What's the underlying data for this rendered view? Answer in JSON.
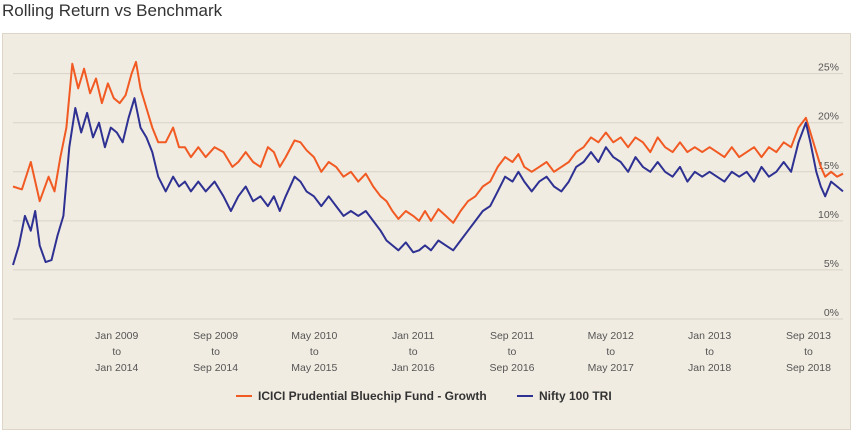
{
  "header": {
    "title": "Rolling Return vs Benchmark"
  },
  "chart_data": {
    "type": "line",
    "title": "Rolling Return vs Benchmark",
    "y_ticks": [
      "0%",
      "5%",
      "10%",
      "15%",
      "20%",
      "25%"
    ],
    "ylim": [
      0,
      27
    ],
    "grid": true,
    "legend": "bottom",
    "x_ticks": [
      [
        "Jan 2009",
        "to",
        "Jan 2014"
      ],
      [
        "Sep 2009",
        "to",
        "Sep 2014"
      ],
      [
        "May 2010",
        "to",
        "May 2015"
      ],
      [
        "Jan 2011",
        "to",
        "Jan 2016"
      ],
      [
        "Sep 2011",
        "to",
        "Sep 2016"
      ],
      [
        "May 2012",
        "to",
        "May 2017"
      ],
      [
        "Jan 2013",
        "to",
        "Jan 2018"
      ],
      [
        "Sep 2013",
        "to",
        "Sep 2018"
      ]
    ],
    "x_tick_positions": [
      2009.0,
      2009.667,
      2010.333,
      2011.0,
      2011.667,
      2012.333,
      2013.0,
      2013.667
    ],
    "xlim": [
      2008.3,
      2013.9
    ],
    "series": [
      {
        "name": "ICICI Prudential Bluechip Fund - Growth",
        "color": "#f15a22",
        "points": [
          [
            2008.3,
            13.5
          ],
          [
            2008.36,
            13.2
          ],
          [
            2008.42,
            16.0
          ],
          [
            2008.48,
            12.0
          ],
          [
            2008.54,
            14.5
          ],
          [
            2008.58,
            13.0
          ],
          [
            2008.62,
            16.5
          ],
          [
            2008.66,
            19.5
          ],
          [
            2008.7,
            26.0
          ],
          [
            2008.74,
            23.5
          ],
          [
            2008.78,
            25.5
          ],
          [
            2008.82,
            23.0
          ],
          [
            2008.86,
            24.5
          ],
          [
            2008.9,
            22.0
          ],
          [
            2008.94,
            24.0
          ],
          [
            2008.98,
            22.5
          ],
          [
            2009.02,
            22.0
          ],
          [
            2009.06,
            22.8
          ],
          [
            2009.1,
            25.0
          ],
          [
            2009.13,
            26.2
          ],
          [
            2009.16,
            23.5
          ],
          [
            2009.2,
            21.5
          ],
          [
            2009.24,
            19.5
          ],
          [
            2009.28,
            18.0
          ],
          [
            2009.33,
            18.0
          ],
          [
            2009.38,
            19.5
          ],
          [
            2009.42,
            17.5
          ],
          [
            2009.46,
            17.5
          ],
          [
            2009.5,
            16.5
          ],
          [
            2009.55,
            17.5
          ],
          [
            2009.6,
            16.5
          ],
          [
            2009.66,
            17.5
          ],
          [
            2009.72,
            17.0
          ],
          [
            2009.78,
            15.5
          ],
          [
            2009.82,
            16.0
          ],
          [
            2009.87,
            17.0
          ],
          [
            2009.92,
            16.0
          ],
          [
            2009.97,
            15.5
          ],
          [
            2010.02,
            17.5
          ],
          [
            2010.06,
            17.0
          ],
          [
            2010.1,
            15.5
          ],
          [
            2010.14,
            16.5
          ],
          [
            2010.2,
            18.2
          ],
          [
            2010.24,
            18.0
          ],
          [
            2010.28,
            17.2
          ],
          [
            2010.33,
            16.5
          ],
          [
            2010.38,
            15.0
          ],
          [
            2010.43,
            16.0
          ],
          [
            2010.48,
            15.5
          ],
          [
            2010.53,
            14.5
          ],
          [
            2010.58,
            15.0
          ],
          [
            2010.63,
            14.0
          ],
          [
            2010.68,
            14.8
          ],
          [
            2010.73,
            13.5
          ],
          [
            2010.78,
            12.5
          ],
          [
            2010.82,
            12.0
          ],
          [
            2010.86,
            11.0
          ],
          [
            2010.9,
            10.2
          ],
          [
            2010.95,
            11.0
          ],
          [
            2011.0,
            10.5
          ],
          [
            2011.04,
            10.0
          ],
          [
            2011.08,
            11.0
          ],
          [
            2011.12,
            10.0
          ],
          [
            2011.17,
            11.2
          ],
          [
            2011.22,
            10.5
          ],
          [
            2011.27,
            9.8
          ],
          [
            2011.32,
            11.0
          ],
          [
            2011.37,
            12.0
          ],
          [
            2011.42,
            12.5
          ],
          [
            2011.47,
            13.5
          ],
          [
            2011.52,
            14.0
          ],
          [
            2011.57,
            15.5
          ],
          [
            2011.62,
            16.5
          ],
          [
            2011.67,
            16.0
          ],
          [
            2011.71,
            16.8
          ],
          [
            2011.75,
            15.5
          ],
          [
            2011.8,
            15.0
          ],
          [
            2011.85,
            15.5
          ],
          [
            2011.9,
            16.0
          ],
          [
            2011.95,
            15.0
          ],
          [
            2012.0,
            15.5
          ],
          [
            2012.05,
            16.0
          ],
          [
            2012.1,
            17.0
          ],
          [
            2012.15,
            17.5
          ],
          [
            2012.2,
            18.5
          ],
          [
            2012.25,
            18.0
          ],
          [
            2012.3,
            19.0
          ],
          [
            2012.35,
            18.0
          ],
          [
            2012.4,
            18.5
          ],
          [
            2012.45,
            17.5
          ],
          [
            2012.5,
            18.5
          ],
          [
            2012.55,
            18.0
          ],
          [
            2012.6,
            17.0
          ],
          [
            2012.65,
            18.5
          ],
          [
            2012.7,
            17.5
          ],
          [
            2012.75,
            17.0
          ],
          [
            2012.8,
            18.0
          ],
          [
            2012.85,
            17.0
          ],
          [
            2012.9,
            17.5
          ],
          [
            2012.95,
            17.0
          ],
          [
            2013.0,
            17.5
          ],
          [
            2013.05,
            17.0
          ],
          [
            2013.1,
            16.5
          ],
          [
            2013.15,
            17.5
          ],
          [
            2013.2,
            16.5
          ],
          [
            2013.25,
            17.0
          ],
          [
            2013.3,
            17.5
          ],
          [
            2013.35,
            16.5
          ],
          [
            2013.4,
            17.5
          ],
          [
            2013.45,
            17.0
          ],
          [
            2013.5,
            18.0
          ],
          [
            2013.55,
            17.5
          ],
          [
            2013.6,
            19.5
          ],
          [
            2013.65,
            20.5
          ],
          [
            2013.68,
            19.0
          ],
          [
            2013.72,
            17.0
          ],
          [
            2013.75,
            15.5
          ],
          [
            2013.78,
            14.5
          ],
          [
            2013.82,
            15.0
          ],
          [
            2013.86,
            14.5
          ],
          [
            2013.9,
            14.8
          ]
        ]
      },
      {
        "name": "Nifty 100 TRI",
        "color": "#2e3192",
        "points": [
          [
            2008.3,
            5.5
          ],
          [
            2008.34,
            7.5
          ],
          [
            2008.38,
            10.5
          ],
          [
            2008.42,
            9.0
          ],
          [
            2008.45,
            11.0
          ],
          [
            2008.48,
            7.5
          ],
          [
            2008.52,
            5.8
          ],
          [
            2008.56,
            6.0
          ],
          [
            2008.6,
            8.5
          ],
          [
            2008.64,
            10.5
          ],
          [
            2008.68,
            17.5
          ],
          [
            2008.72,
            21.5
          ],
          [
            2008.76,
            19.0
          ],
          [
            2008.8,
            21.0
          ],
          [
            2008.84,
            18.5
          ],
          [
            2008.88,
            20.0
          ],
          [
            2008.92,
            17.5
          ],
          [
            2008.96,
            19.5
          ],
          [
            2009.0,
            19.0
          ],
          [
            2009.04,
            18.0
          ],
          [
            2009.08,
            20.5
          ],
          [
            2009.12,
            22.5
          ],
          [
            2009.16,
            19.5
          ],
          [
            2009.2,
            18.5
          ],
          [
            2009.24,
            17.0
          ],
          [
            2009.28,
            14.5
          ],
          [
            2009.33,
            13.0
          ],
          [
            2009.38,
            14.5
          ],
          [
            2009.42,
            13.5
          ],
          [
            2009.46,
            14.0
          ],
          [
            2009.5,
            13.0
          ],
          [
            2009.55,
            14.0
          ],
          [
            2009.6,
            13.0
          ],
          [
            2009.66,
            14.0
          ],
          [
            2009.72,
            12.5
          ],
          [
            2009.77,
            11.0
          ],
          [
            2009.82,
            12.5
          ],
          [
            2009.87,
            13.5
          ],
          [
            2009.92,
            12.0
          ],
          [
            2009.97,
            12.5
          ],
          [
            2010.02,
            11.5
          ],
          [
            2010.06,
            12.5
          ],
          [
            2010.1,
            11.0
          ],
          [
            2010.14,
            12.5
          ],
          [
            2010.2,
            14.5
          ],
          [
            2010.24,
            14.0
          ],
          [
            2010.28,
            13.0
          ],
          [
            2010.33,
            12.5
          ],
          [
            2010.38,
            11.5
          ],
          [
            2010.43,
            12.5
          ],
          [
            2010.48,
            11.5
          ],
          [
            2010.53,
            10.5
          ],
          [
            2010.58,
            11.0
          ],
          [
            2010.63,
            10.5
          ],
          [
            2010.68,
            11.0
          ],
          [
            2010.73,
            10.0
          ],
          [
            2010.78,
            9.0
          ],
          [
            2010.82,
            8.0
          ],
          [
            2010.86,
            7.5
          ],
          [
            2010.9,
            7.0
          ],
          [
            2010.95,
            7.8
          ],
          [
            2011.0,
            6.8
          ],
          [
            2011.04,
            7.0
          ],
          [
            2011.08,
            7.5
          ],
          [
            2011.12,
            7.0
          ],
          [
            2011.17,
            8.0
          ],
          [
            2011.22,
            7.5
          ],
          [
            2011.27,
            7.0
          ],
          [
            2011.32,
            8.0
          ],
          [
            2011.37,
            9.0
          ],
          [
            2011.42,
            10.0
          ],
          [
            2011.47,
            11.0
          ],
          [
            2011.52,
            11.5
          ],
          [
            2011.57,
            13.0
          ],
          [
            2011.62,
            14.5
          ],
          [
            2011.67,
            14.0
          ],
          [
            2011.71,
            15.0
          ],
          [
            2011.75,
            14.0
          ],
          [
            2011.8,
            13.0
          ],
          [
            2011.85,
            14.0
          ],
          [
            2011.9,
            14.5
          ],
          [
            2011.95,
            13.5
          ],
          [
            2012.0,
            13.0
          ],
          [
            2012.05,
            14.0
          ],
          [
            2012.1,
            15.5
          ],
          [
            2012.15,
            16.0
          ],
          [
            2012.2,
            17.0
          ],
          [
            2012.25,
            16.0
          ],
          [
            2012.3,
            17.5
          ],
          [
            2012.35,
            16.5
          ],
          [
            2012.4,
            16.0
          ],
          [
            2012.45,
            15.0
          ],
          [
            2012.5,
            16.5
          ],
          [
            2012.55,
            15.5
          ],
          [
            2012.6,
            15.0
          ],
          [
            2012.65,
            16.0
          ],
          [
            2012.7,
            15.0
          ],
          [
            2012.75,
            14.5
          ],
          [
            2012.8,
            15.5
          ],
          [
            2012.85,
            14.0
          ],
          [
            2012.9,
            15.0
          ],
          [
            2012.95,
            14.5
          ],
          [
            2013.0,
            15.0
          ],
          [
            2013.05,
            14.5
          ],
          [
            2013.1,
            14.0
          ],
          [
            2013.15,
            15.0
          ],
          [
            2013.2,
            14.5
          ],
          [
            2013.25,
            15.0
          ],
          [
            2013.3,
            14.0
          ],
          [
            2013.35,
            15.5
          ],
          [
            2013.4,
            14.5
          ],
          [
            2013.45,
            15.0
          ],
          [
            2013.5,
            16.0
          ],
          [
            2013.55,
            15.0
          ],
          [
            2013.6,
            18.0
          ],
          [
            2013.65,
            20.0
          ],
          [
            2013.68,
            18.0
          ],
          [
            2013.72,
            15.0
          ],
          [
            2013.75,
            13.5
          ],
          [
            2013.78,
            12.5
          ],
          [
            2013.82,
            14.0
          ],
          [
            2013.86,
            13.5
          ],
          [
            2013.9,
            13.0
          ]
        ]
      }
    ]
  }
}
